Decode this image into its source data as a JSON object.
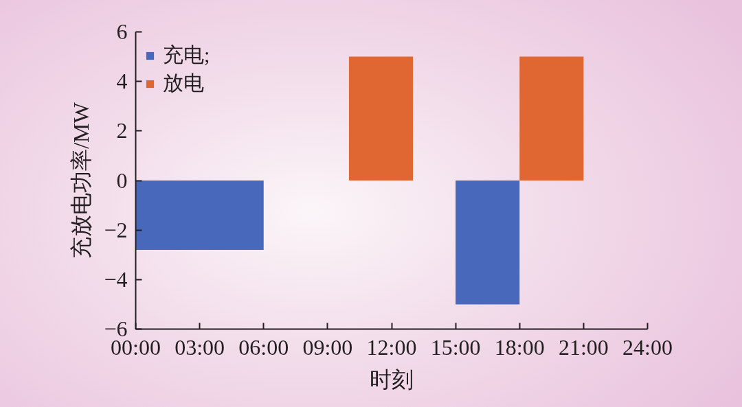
{
  "chart_data": {
    "type": "histogram",
    "xlabel": "时刻",
    "ylabel": "充放电功率/MW",
    "bins": [
      0,
      6,
      10,
      13,
      15,
      18,
      21
    ],
    "series": [
      {
        "name": "充电;",
        "color": "#4869bb",
        "values": [
          -2.8,
          null,
          null,
          null,
          -5,
          null
        ]
      },
      {
        "name": "放电",
        "color": "#e06732",
        "values": [
          null,
          null,
          5,
          null,
          null,
          5
        ]
      }
    ],
    "xlim": [
      0,
      24
    ],
    "xticks": [
      {
        "value": 0,
        "label": "00:00"
      },
      {
        "value": 3,
        "label": "03:00"
      },
      {
        "value": 6,
        "label": "06:00"
      },
      {
        "value": 9,
        "label": "09:00"
      },
      {
        "value": 12,
        "label": "12:00"
      },
      {
        "value": 15,
        "label": "15:00"
      },
      {
        "value": 18,
        "label": "18:00"
      },
      {
        "value": 21,
        "label": "21:00"
      },
      {
        "value": 24,
        "label": "24:00"
      }
    ],
    "ylim": [
      -6,
      6
    ],
    "yticks": [
      {
        "value": -6,
        "label": "−6"
      },
      {
        "value": -4,
        "label": "−4"
      },
      {
        "value": -2,
        "label": "−2"
      },
      0,
      2,
      4,
      6
    ],
    "legend": "top left",
    "grid": false
  }
}
